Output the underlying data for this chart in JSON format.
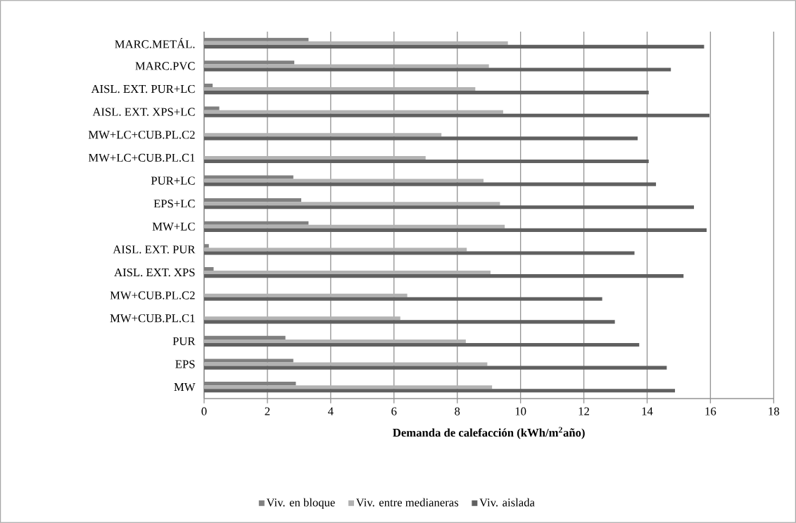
{
  "chart_data": {
    "type": "bar",
    "orientation": "horizontal",
    "xlabel": "Demanda de calefacción (kWh/m$^{2}$año)",
    "categories": [
      "MARC.METÁL.",
      "MARC.PVC",
      "AISL. EXT. PUR+LC",
      "AISL. EXT. XPS+LC",
      "MW+LC+CUB.PL.C2",
      "MW+LC+CUB.PL.C1",
      "PUR+LC",
      "EPS+LC",
      "MW+LC",
      "AISL. EXT. PUR",
      "AISL. EXT. XPS",
      "MW+CUB.PL.C2",
      "MW+CUB.PL.C1",
      "PUR",
      "EPS",
      "MW"
    ],
    "series": [
      {
        "name": "Viv. en bloque",
        "color": "#808080",
        "values": [
          3.3,
          2.85,
          0.27,
          0.48,
          0,
          0,
          2.82,
          3.07,
          3.3,
          0.15,
          0.3,
          0,
          0,
          2.57,
          2.82,
          2.9
        ]
      },
      {
        "name": "Viv. entre medianeras",
        "color": "#b2b2b2",
        "values": [
          9.6,
          9.0,
          8.57,
          9.45,
          7.5,
          7.0,
          8.83,
          9.35,
          9.5,
          8.3,
          9.05,
          6.42,
          6.2,
          8.27,
          8.95,
          9.1
        ]
      },
      {
        "name": "Viv. aislada",
        "color": "#606060",
        "values": [
          15.8,
          14.75,
          14.05,
          15.97,
          13.7,
          14.05,
          14.28,
          15.48,
          15.88,
          13.6,
          15.15,
          12.58,
          12.98,
          13.75,
          14.62,
          14.88
        ]
      }
    ],
    "xlim": [
      0,
      18
    ],
    "xticks": [
      0,
      2,
      4,
      6,
      8,
      10,
      12,
      14,
      16,
      18
    ],
    "grid": "x",
    "legend": "bottom"
  }
}
